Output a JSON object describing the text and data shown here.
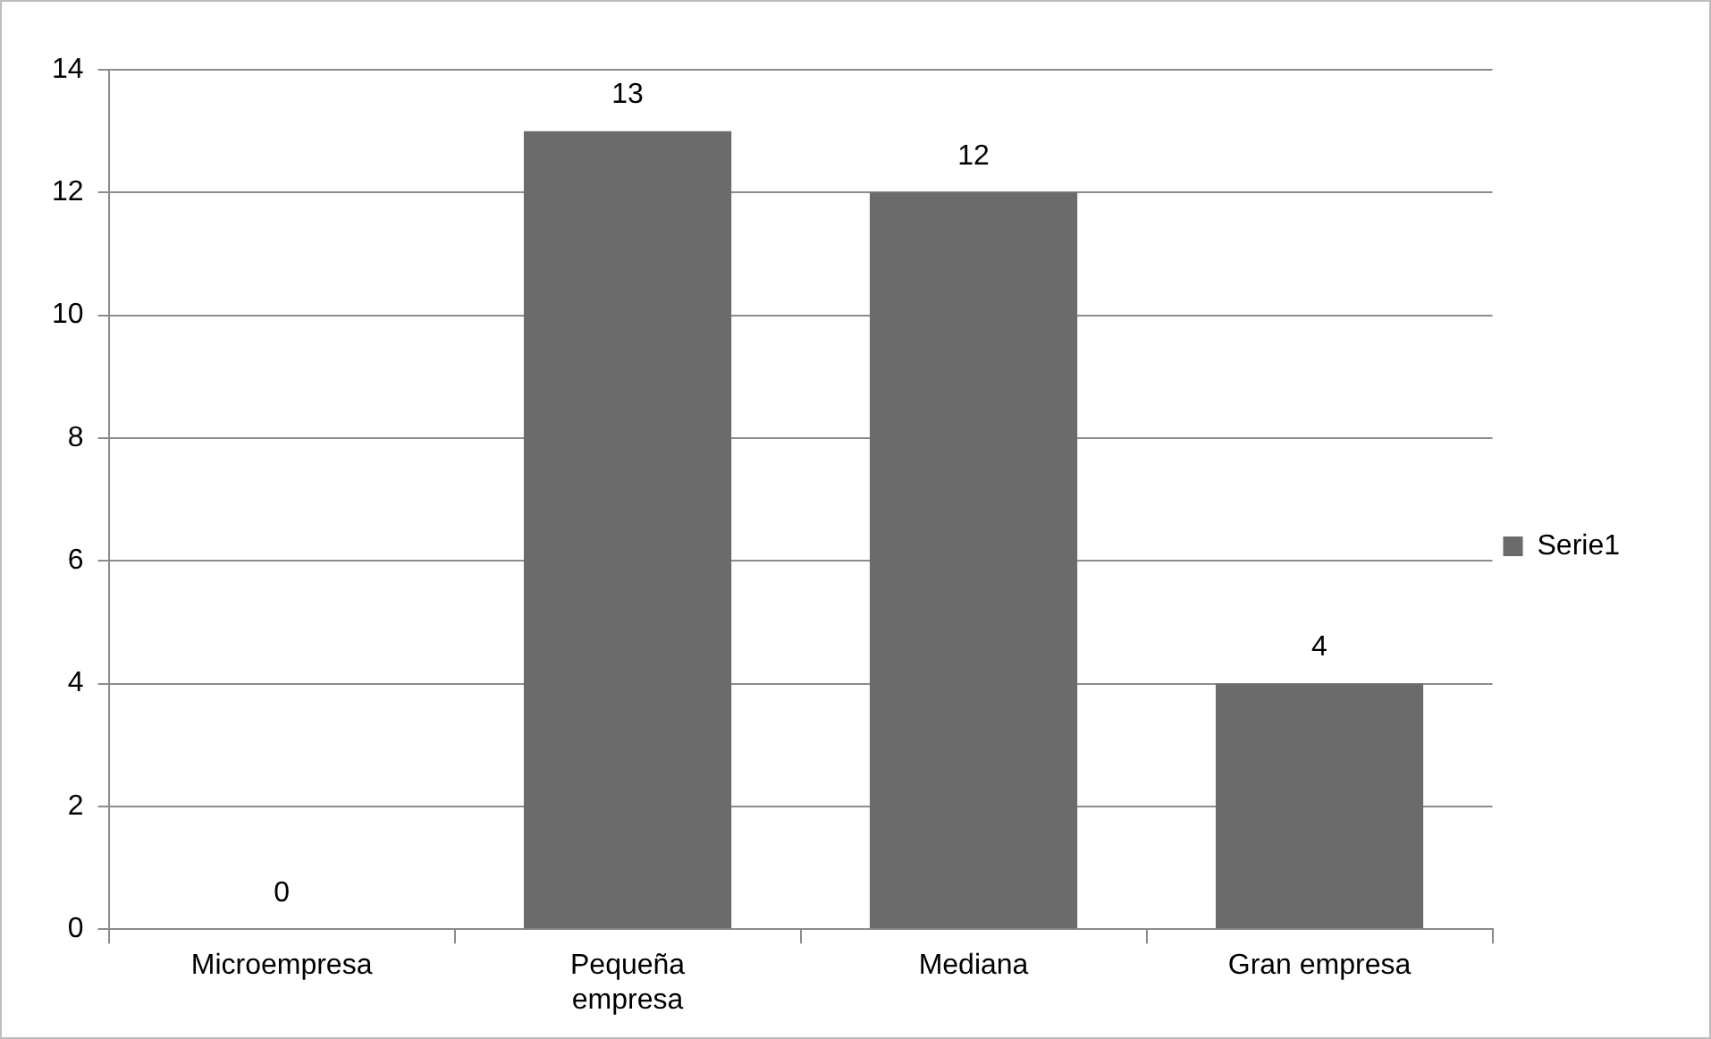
{
  "chart_data": {
    "type": "bar",
    "categories": [
      "Microempresa",
      "Pequeña empresa",
      "Mediana",
      "Gran empresa"
    ],
    "series": [
      {
        "name": "Serie1",
        "color": "#6b6b6b",
        "values": [
          0,
          13,
          12,
          4
        ]
      }
    ],
    "ylim": [
      0,
      14
    ],
    "yticks": [
      0,
      2,
      4,
      6,
      8,
      10,
      12,
      14
    ],
    "grid": "y",
    "legend": "right",
    "data_labels": true
  }
}
